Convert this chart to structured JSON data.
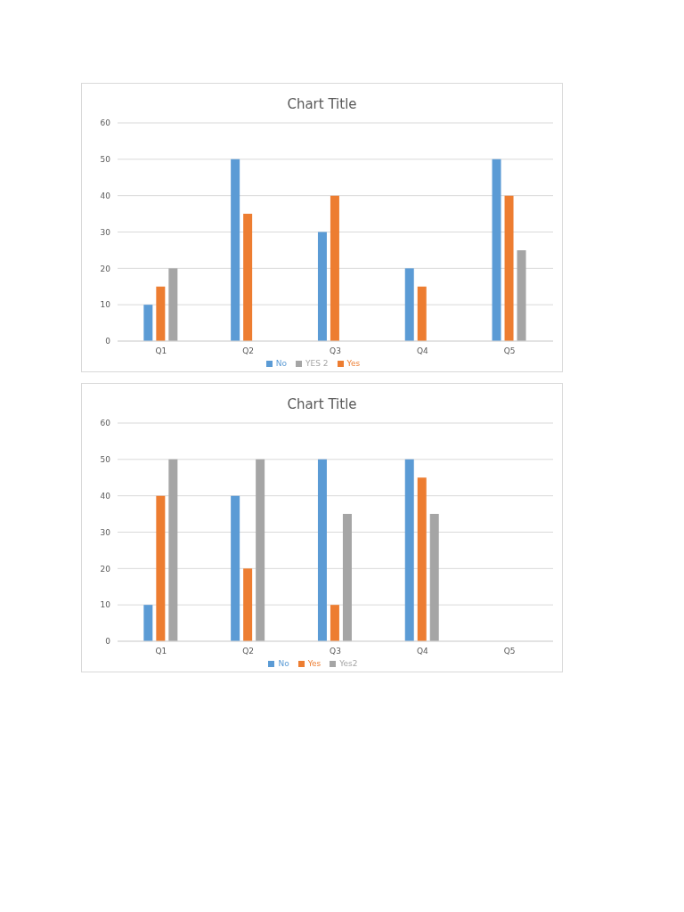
{
  "chart_data": [
    {
      "type": "bar",
      "title": "Chart Title",
      "categories": [
        "Q1",
        "Q2",
        "Q3",
        "Q4",
        "Q5"
      ],
      "series": [
        {
          "name": "No",
          "color": "#5b9bd5",
          "values": [
            10,
            50,
            30,
            20,
            50
          ]
        },
        {
          "name": "Yes",
          "color": "#ed7d31",
          "values": [
            15,
            35,
            40,
            15,
            40
          ]
        },
        {
          "name": "YES 2",
          "color": "#a5a5a5",
          "values": [
            20,
            null,
            null,
            null,
            25
          ]
        }
      ],
      "ylim": [
        0,
        60
      ],
      "yticks": [
        0,
        10,
        20,
        30,
        40,
        50,
        60
      ],
      "grid": "y",
      "legend": "bottom"
    },
    {
      "type": "bar",
      "title": "Chart Title",
      "categories": [
        "Q1",
        "Q2",
        "Q3",
        "Q4",
        "Q5"
      ],
      "series": [
        {
          "name": "No",
          "color": "#5b9bd5",
          "values": [
            10,
            40,
            50,
            50,
            null
          ]
        },
        {
          "name": "Yes",
          "color": "#ed7d31",
          "values": [
            40,
            20,
            10,
            45,
            null
          ]
        },
        {
          "name": "Yes2",
          "color": "#a5a5a5",
          "values": [
            50,
            50,
            35,
            35,
            null
          ]
        }
      ],
      "ylim": [
        0,
        60
      ],
      "yticks": [
        0,
        10,
        20,
        30,
        40,
        50,
        60
      ],
      "grid": "y",
      "legend": "bottom"
    }
  ]
}
